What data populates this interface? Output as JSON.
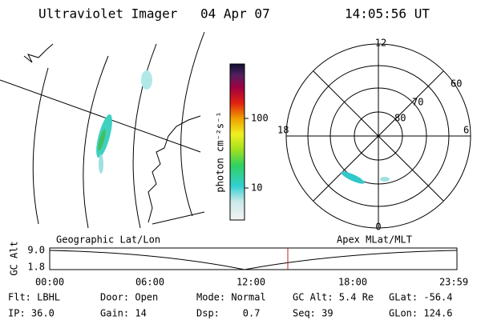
{
  "header": {
    "instrument": "Ultraviolet Imager",
    "date": "04 Apr 07",
    "time": "14:05:56 UT"
  },
  "colorbar": {
    "label": "photon cm⁻²s⁻¹",
    "ticks": [
      "100",
      "10"
    ]
  },
  "polar": {
    "hours": [
      "12",
      "18",
      "6",
      "0"
    ],
    "latitudes": [
      "60",
      "70",
      "80"
    ]
  },
  "altitude": {
    "axis_label": "GC Alt",
    "left_label": "Geographic Lat/Lon",
    "right_label": "Apex MLat/MLT",
    "yticks": [
      "9.0",
      "1.8"
    ],
    "xticks": [
      "00:00",
      "06:00",
      "12:00",
      "18:00",
      "23:59"
    ]
  },
  "footer": {
    "rows": [
      [
        "Flt: LBHL",
        "Door: Open",
        "Mode: Normal",
        "GC Alt: 5.4 Re",
        "GLat: -56.4"
      ],
      [
        "IP: 36.0",
        "Gain: 14",
        "Dsp:    0.7",
        "Seq: 39",
        "GLon: 124.6"
      ]
    ]
  }
}
